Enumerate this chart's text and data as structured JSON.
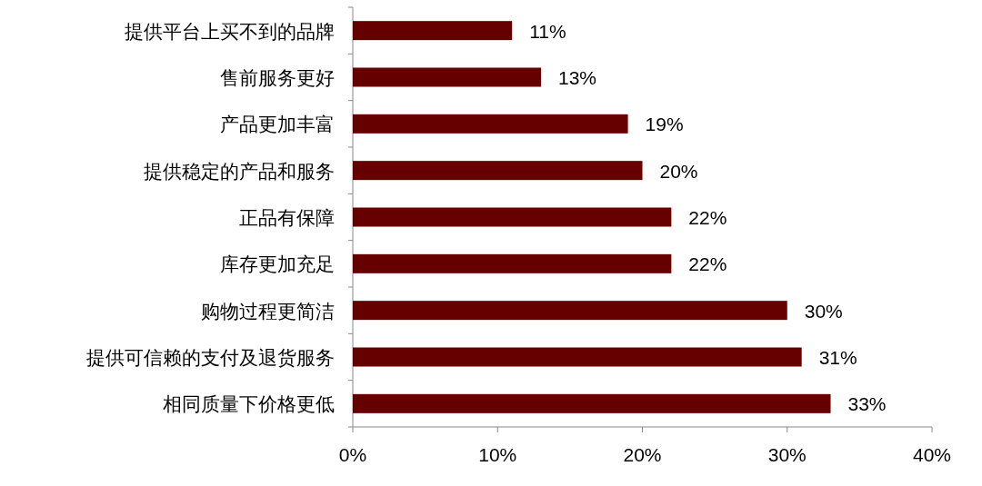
{
  "chart_data": {
    "type": "bar",
    "orientation": "horizontal",
    "categories": [
      "提供平台上买不到的品牌",
      "售前服务更好",
      "产品更加丰富",
      "提供稳定的产品和服务",
      "正品有保障",
      "库存更加充足",
      "购物过程更简洁",
      "提供可信赖的支付及退货服务",
      "相同质量下价格更低"
    ],
    "values": [
      11,
      13,
      19,
      20,
      22,
      22,
      30,
      31,
      33
    ],
    "value_labels": [
      "11%",
      "13%",
      "19%",
      "20%",
      "22%",
      "22%",
      "30%",
      "31%",
      "33%"
    ],
    "color": "#660000",
    "xlim": [
      0,
      40
    ],
    "xticks": [
      {
        "value": 0,
        "label": "0%"
      },
      {
        "value": 10,
        "label": "10%"
      },
      {
        "value": 20,
        "label": "20%"
      },
      {
        "value": 30,
        "label": "30%"
      },
      {
        "value": 40,
        "label": "40%"
      }
    ]
  }
}
